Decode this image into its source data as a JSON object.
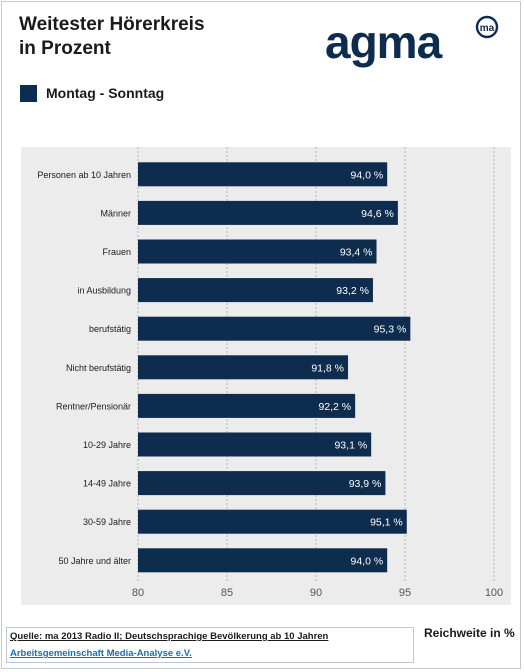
{
  "header": {
    "title_line1": "Weitester Hörerkreis",
    "title_line2": "in Prozent",
    "logo_text": "agma",
    "logo_mark": "ma"
  },
  "colors": {
    "bar": "#0d2c4e",
    "plot_bg": "#ececec",
    "logo": "#0d2c4e",
    "link": "#1a6fb0"
  },
  "footer": {
    "source": "Quelle: ma 2013 Radio II; Deutschsprachige Bevölkerung ab 10 Jahren",
    "org": "Arbeitsgemeinschaft Media-Analyse e.V.",
    "axis_unit": "Reichweite in %"
  },
  "chart_data": {
    "type": "bar",
    "orientation": "horizontal",
    "categories": [
      "Personen ab 10 Jahren",
      "Männer",
      "Frauen",
      "in Ausbildung",
      "berufstätig",
      "Nicht berufstätig",
      "Rentner/Pensionär",
      "10-29 Jahre",
      "14-49 Jahre",
      "30-59 Jahre",
      "50 Jahre und älter"
    ],
    "series": [
      {
        "name": "Montag - Sonntag",
        "values": [
          94.0,
          94.6,
          93.4,
          93.2,
          95.3,
          91.8,
          92.2,
          93.1,
          93.9,
          95.1,
          94.0
        ],
        "labels": [
          "94,0 %",
          "94,6 %",
          "93,4 %",
          "93,2 %",
          "95,3 %",
          "91,8 %",
          "92,2 %",
          "93,1 %",
          "93,9 %",
          "95,1 %",
          "94,0 %"
        ]
      }
    ],
    "xlim": [
      80,
      100
    ],
    "xticks": [
      "80",
      "85",
      "90",
      "95",
      "100"
    ],
    "xlabel": "Reichweite in %",
    "grid": "vertical-dotted",
    "legend": "top-left"
  }
}
